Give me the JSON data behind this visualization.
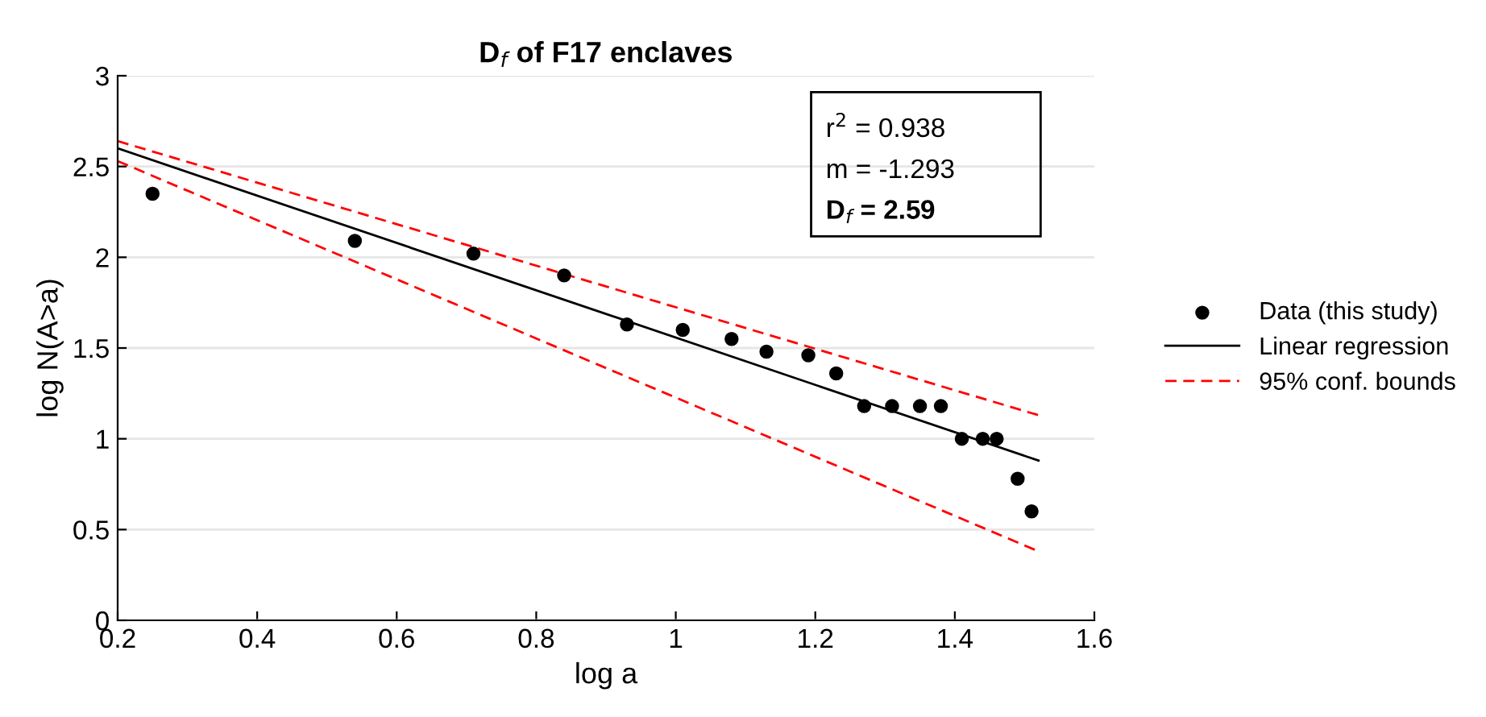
{
  "chart_data": {
    "type": "scatter",
    "title": "D$_{f}$ of F17 enclaves",
    "xlabel": "log a",
    "ylabel": "log N(A>a)",
    "xlim": [
      0.2,
      1.6
    ],
    "xticks": [
      0.2,
      0.4,
      0.6,
      0.8,
      1,
      1.2,
      1.4,
      1.6
    ],
    "ylim": [
      0,
      3
    ],
    "yticks": [
      0,
      0.5,
      1,
      1.5,
      2,
      2.5,
      3
    ],
    "grid": "y",
    "legend": "right",
    "annotations": [
      "r$^{2}$ = 0.938",
      "m = -1.293",
      "D$_{f}$ = 2.59"
    ],
    "series": [
      {
        "name": "Data (this study)",
        "color": "#000000",
        "marker": "circle",
        "x": [
          0.25,
          0.54,
          0.71,
          0.84,
          0.93,
          1.01,
          1.08,
          1.13,
          1.19,
          1.23,
          1.27,
          1.31,
          1.35,
          1.38,
          1.41,
          1.44,
          1.46,
          1.49,
          1.51
        ],
        "values": [
          2.35,
          2.09,
          2.02,
          1.9,
          1.63,
          1.6,
          1.55,
          1.48,
          1.46,
          1.36,
          1.18,
          1.18,
          1.18,
          1.18,
          1.0,
          1.0,
          1.0,
          0.78,
          0.6
        ]
      },
      {
        "name": "Linear regression",
        "type": "line",
        "color": "#000000",
        "line_style": "solid",
        "x": [
          0.2,
          1.52
        ],
        "values": [
          2.6,
          0.88
        ]
      },
      {
        "name": "95% conf. bounds",
        "type": "line",
        "color": "#ff0000",
        "line_style": "dashed",
        "x": [
          0.2,
          1.52
        ],
        "values": [
          2.64,
          1.13
        ]
      },
      {
        "type": "line",
        "color": "#ff0000",
        "line_style": "dashed",
        "x": [
          0.2,
          1.52
        ],
        "values": [
          2.53,
          0.38
        ]
      }
    ]
  }
}
